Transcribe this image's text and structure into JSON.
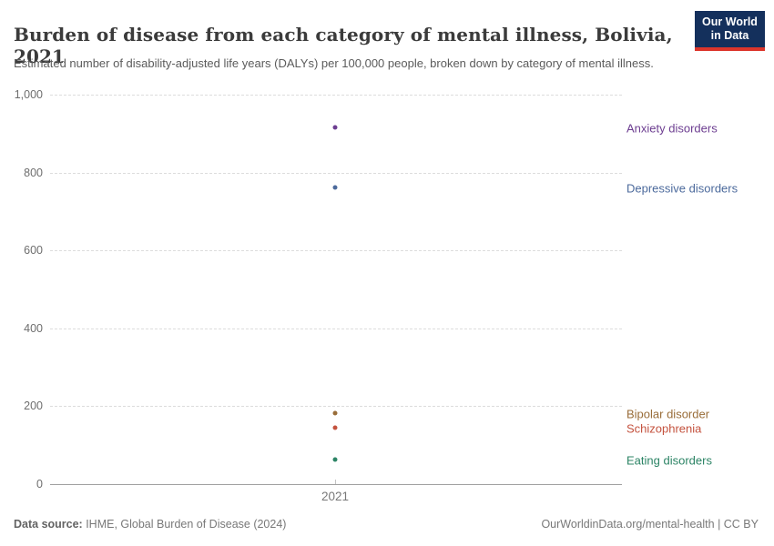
{
  "header": {
    "title": "Burden of disease from each category of mental illness, Bolivia, 2021",
    "subtitle": "Estimated number of disability-adjusted life years (DALYs) per 100,000 people, broken down by category of mental illness.",
    "logo": {
      "line1": "Our World",
      "line2": "in Data",
      "bg_color": "#14305c",
      "stripe_color": "#dc352b"
    }
  },
  "chart_data": {
    "type": "scatter",
    "title": "Burden of disease from each category of mental illness, Bolivia, 2021",
    "xlabel": "",
    "ylabel": "DALYs per 100,000 people",
    "x": [
      2021
    ],
    "xtick_labels": [
      "2021"
    ],
    "ylim": [
      0,
      1000
    ],
    "yticks": [
      0,
      200,
      400,
      600,
      800,
      1000
    ],
    "ytick_labels": [
      "0",
      "200",
      "400",
      "600",
      "800",
      "1,000"
    ],
    "grid": "horizontal-dashed",
    "legend_position": "right-entity-labels",
    "series": [
      {
        "name": "Anxiety disorders",
        "values": [
          915
        ],
        "color": "#6d3e91"
      },
      {
        "name": "Depressive disorders",
        "values": [
          762
        ],
        "color": "#4c6a9c"
      },
      {
        "name": "Bipolar disorder",
        "values": [
          182
        ],
        "color": "#996d39"
      },
      {
        "name": "Schizophrenia",
        "values": [
          146
        ],
        "color": "#c4523e"
      },
      {
        "name": "Eating disorders",
        "values": [
          64
        ],
        "color": "#2c8465"
      }
    ]
  },
  "footer": {
    "source_label": "Data source:",
    "source_value": " IHME, Global Burden of Disease (2024)",
    "rights": "OurWorldinData.org/mental-health | CC BY"
  }
}
